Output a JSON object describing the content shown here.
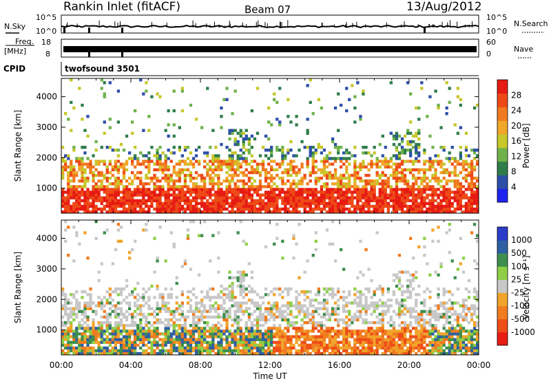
{
  "header": {
    "title": "Rankin Inlet (fitACF)",
    "beam": "Beam 07",
    "date": "13/Aug/2012"
  },
  "status_panels": {
    "nsky_label": "N.Sky",
    "nsearch_label": "N.Search",
    "nsky_ticks": [
      "10^5",
      "10^0"
    ],
    "freq_label": "Freq.",
    "freq_unit": "[MHz]",
    "freq_ticks": [
      "18",
      "8"
    ],
    "nave_label": "Nave",
    "nave_ticks": [
      "60",
      "0"
    ],
    "cpid_label": "CPID",
    "cpid_value": "twofsound 3501"
  },
  "colors": {
    "power_scale": [
      "#1f23f0",
      "#2d4fa8",
      "#2f7d4a",
      "#6fb24b",
      "#c6c72a",
      "#f0a72a",
      "#f07a1f",
      "#ee4a17",
      "#e61b13"
    ],
    "velocity_scale": [
      "#e81d14",
      "#ee4e17",
      "#f07c20",
      "#f1a42b",
      "#c8c8c8",
      "#8fcf45",
      "#3e8f4d",
      "#2f5fa3",
      "#2a3cc8"
    ]
  },
  "chart_data": [
    {
      "type": "heatmap",
      "name": "power-panel",
      "xlabel": "",
      "ylabel": "Slant Range [km]",
      "yticks": [
        1000,
        2000,
        3000,
        4000
      ],
      "ylim": [
        180,
        4600
      ],
      "xlim_hours": [
        0,
        24
      ],
      "colorbar_label": "Power [dB]",
      "colorbar_ticks": [
        "4",
        "8",
        "12",
        "16",
        "20",
        "24",
        "28"
      ],
      "colorbar_range": [
        0,
        32
      ]
    },
    {
      "type": "heatmap",
      "name": "velocity-panel",
      "xlabel": "Time UT",
      "ylabel": "Slant Range [km]",
      "yticks": [
        1000,
        2000,
        3000,
        4000
      ],
      "ylim": [
        180,
        4600
      ],
      "xtick_labels": [
        "00:00",
        "04:00",
        "08:00",
        "12:00",
        "16:00",
        "20:00",
        "00:00"
      ],
      "colorbar_label": "Velocity [m s⁻¹]",
      "colorbar_ticks": [
        "1000",
        "500",
        "100",
        "25",
        "-25",
        "-100",
        "-500",
        "-1000"
      ]
    }
  ]
}
